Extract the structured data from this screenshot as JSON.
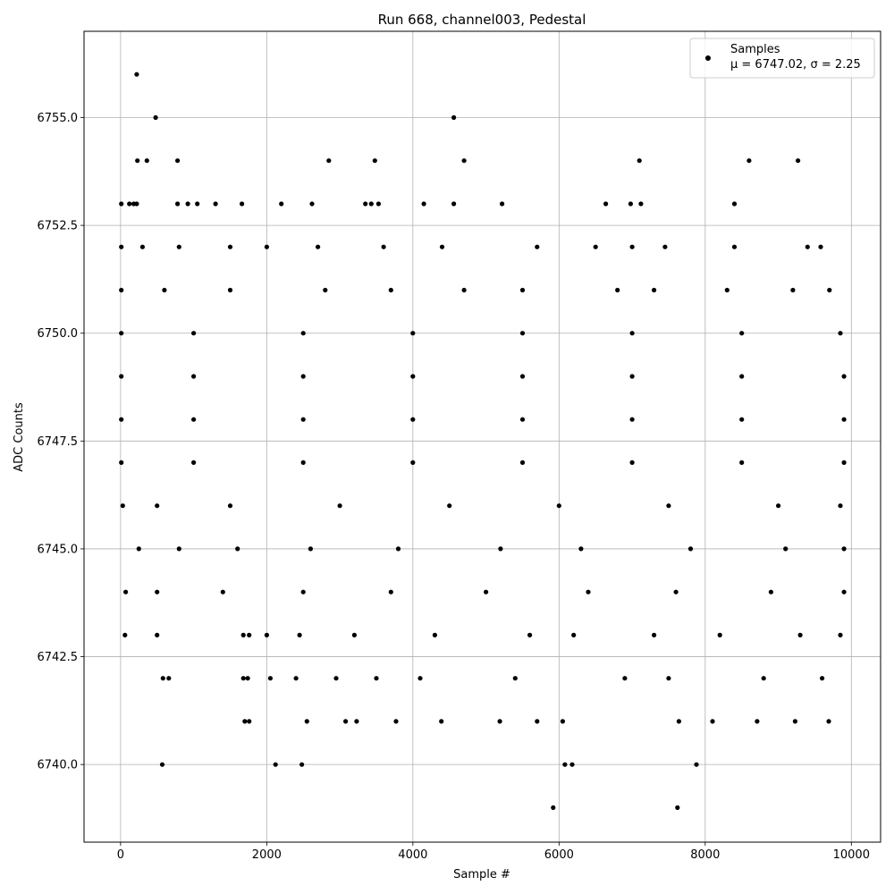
{
  "chart_data": {
    "type": "scatter",
    "title": "Run 668, channel003, Pedestal",
    "xlabel": "Sample #",
    "ylabel": "ADC Counts",
    "xlim": [
      -500,
      10400
    ],
    "ylim": [
      6738.2,
      6757.0
    ],
    "xticks": [
      0,
      2000,
      4000,
      6000,
      8000,
      10000
    ],
    "xtick_labels": [
      "0",
      "2000",
      "4000",
      "6000",
      "8000",
      "10000"
    ],
    "yticks": [
      6740.0,
      6742.5,
      6745.0,
      6747.5,
      6750.0,
      6752.5,
      6755.0
    ],
    "ytick_labels": [
      "6740.0",
      "6742.5",
      "6745.0",
      "6747.5",
      "6750.0",
      "6752.5",
      "6755.0"
    ],
    "grid": true,
    "legend_position": "top-right",
    "marker_color": "#000000",
    "series": [
      {
        "name": "Samples",
        "legend_line1": "Samples",
        "legend_line2": "μ = 6747.02, σ = 2.25",
        "points": [
          [
            220,
            6756
          ],
          [
            480,
            6755
          ],
          [
            4560,
            6755
          ],
          [
            230,
            6754
          ],
          [
            360,
            6754
          ],
          [
            780,
            6754
          ],
          [
            2850,
            6754
          ],
          [
            3480,
            6754
          ],
          [
            4700,
            6754
          ],
          [
            7100,
            6754
          ],
          [
            8600,
            6754
          ],
          [
            9270,
            6754
          ],
          [
            10,
            6753
          ],
          [
            120,
            6753
          ],
          [
            180,
            6753
          ],
          [
            220,
            6753
          ],
          [
            780,
            6753
          ],
          [
            920,
            6753
          ],
          [
            1050,
            6753
          ],
          [
            1300,
            6753
          ],
          [
            1660,
            6753
          ],
          [
            2200,
            6753
          ],
          [
            2620,
            6753
          ],
          [
            3350,
            6753
          ],
          [
            3430,
            6753
          ],
          [
            3530,
            6753
          ],
          [
            4150,
            6753
          ],
          [
            4560,
            6753
          ],
          [
            5220,
            6753
          ],
          [
            6640,
            6753
          ],
          [
            6980,
            6753
          ],
          [
            7120,
            6753
          ],
          [
            8400,
            6753
          ],
          [
            570,
            6740
          ],
          [
            2120,
            6740
          ],
          [
            2480,
            6740
          ],
          [
            6080,
            6740
          ],
          [
            6180,
            6740
          ],
          [
            7880,
            6740
          ],
          [
            5920,
            6739
          ],
          [
            7620,
            6739
          ],
          [
            60,
            6743
          ],
          [
            500,
            6743
          ],
          [
            1680,
            6743
          ],
          [
            1760,
            6743
          ],
          [
            2000,
            6743
          ],
          [
            2450,
            6743
          ],
          [
            3200,
            6743
          ],
          [
            4300,
            6743
          ],
          [
            5600,
            6743
          ],
          [
            6200,
            6743
          ],
          [
            7300,
            6743
          ],
          [
            8200,
            6743
          ],
          [
            9300,
            6743
          ],
          [
            9850,
            6743
          ],
          [
            580,
            6742
          ],
          [
            660,
            6742
          ],
          [
            1680,
            6742
          ],
          [
            1740,
            6742
          ],
          [
            2050,
            6742
          ],
          [
            2400,
            6742
          ],
          [
            2950,
            6742
          ],
          [
            3500,
            6742
          ],
          [
            4100,
            6742
          ],
          [
            5400,
            6742
          ],
          [
            6900,
            6742
          ],
          [
            7500,
            6742
          ],
          [
            8800,
            6742
          ],
          [
            9600,
            6742
          ],
          [
            1700,
            6741
          ],
          [
            1760,
            6741
          ],
          [
            2550,
            6741
          ],
          [
            3080,
            6741
          ],
          [
            3230,
            6741
          ],
          [
            3770,
            6741
          ],
          [
            4390,
            6741
          ],
          [
            5190,
            6741
          ],
          [
            5700,
            6741
          ],
          [
            6050,
            6741
          ],
          [
            7640,
            6741
          ],
          [
            8100,
            6741
          ],
          [
            8710,
            6741
          ],
          [
            9230,
            6741
          ],
          [
            9690,
            6741
          ],
          [
            70,
            6744
          ],
          [
            500,
            6744
          ],
          [
            1400,
            6744
          ],
          [
            2500,
            6744
          ],
          [
            3700,
            6744
          ],
          [
            5000,
            6744
          ],
          [
            6400,
            6744
          ],
          [
            7600,
            6744
          ],
          [
            8900,
            6744
          ],
          [
            9900,
            6744
          ],
          [
            250,
            6745
          ],
          [
            800,
            6745
          ],
          [
            1600,
            6745
          ],
          [
            2600,
            6745
          ],
          [
            3800,
            6745
          ],
          [
            5200,
            6745
          ],
          [
            6300,
            6745
          ],
          [
            7800,
            6745
          ],
          [
            9100,
            6745
          ],
          [
            9900,
            6745
          ],
          [
            30,
            6746
          ],
          [
            500,
            6746
          ],
          [
            1500,
            6746
          ],
          [
            3000,
            6746
          ],
          [
            4500,
            6746
          ],
          [
            6000,
            6746
          ],
          [
            7500,
            6746
          ],
          [
            9000,
            6746
          ],
          [
            9850,
            6746
          ],
          [
            10,
            6747
          ],
          [
            1000,
            6747
          ],
          [
            2500,
            6747
          ],
          [
            4000,
            6747
          ],
          [
            5500,
            6747
          ],
          [
            7000,
            6747
          ],
          [
            8500,
            6747
          ],
          [
            9900,
            6747
          ],
          [
            10,
            6748
          ],
          [
            1000,
            6748
          ],
          [
            2500,
            6748
          ],
          [
            4000,
            6748
          ],
          [
            5500,
            6748
          ],
          [
            7000,
            6748
          ],
          [
            8500,
            6748
          ],
          [
            9900,
            6748
          ],
          [
            10,
            6749
          ],
          [
            1000,
            6749
          ],
          [
            2500,
            6749
          ],
          [
            4000,
            6749
          ],
          [
            5500,
            6749
          ],
          [
            7000,
            6749
          ],
          [
            8500,
            6749
          ],
          [
            9900,
            6749
          ],
          [
            10,
            6750
          ],
          [
            1000,
            6750
          ],
          [
            2500,
            6750
          ],
          [
            4000,
            6750
          ],
          [
            5500,
            6750
          ],
          [
            7000,
            6750
          ],
          [
            8500,
            6750
          ],
          [
            9850,
            6750
          ],
          [
            10,
            6751
          ],
          [
            600,
            6751
          ],
          [
            1500,
            6751
          ],
          [
            2800,
            6751
          ],
          [
            3700,
            6751
          ],
          [
            4700,
            6751
          ],
          [
            5500,
            6751
          ],
          [
            6800,
            6751
          ],
          [
            7300,
            6751
          ],
          [
            8300,
            6751
          ],
          [
            9200,
            6751
          ],
          [
            9700,
            6751
          ],
          [
            10,
            6752
          ],
          [
            300,
            6752
          ],
          [
            800,
            6752
          ],
          [
            1500,
            6752
          ],
          [
            2000,
            6752
          ],
          [
            2700,
            6752
          ],
          [
            3600,
            6752
          ],
          [
            4400,
            6752
          ],
          [
            5700,
            6752
          ],
          [
            6500,
            6752
          ],
          [
            7000,
            6752
          ],
          [
            7450,
            6752
          ],
          [
            8400,
            6752
          ],
          [
            9400,
            6752
          ],
          [
            9580,
            6752
          ]
        ]
      }
    ]
  }
}
